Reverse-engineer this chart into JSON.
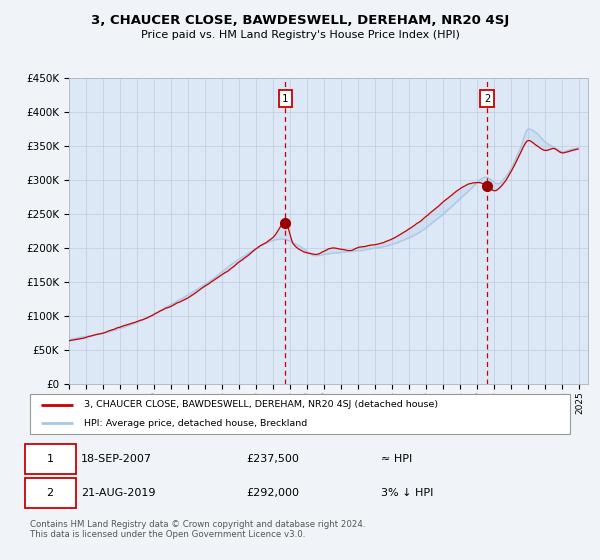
{
  "title": "3, CHAUCER CLOSE, BAWDESWELL, DEREHAM, NR20 4SJ",
  "subtitle": "Price paid vs. HM Land Registry's House Price Index (HPI)",
  "legend_line1": "3, CHAUCER CLOSE, BAWDESWELL, DEREHAM, NR20 4SJ (detached house)",
  "legend_line2": "HPI: Average price, detached house, Breckland",
  "annotation1_date": "18-SEP-2007",
  "annotation1_price": "£237,500",
  "annotation1_hpi": "≈ HPI",
  "annotation2_date": "21-AUG-2019",
  "annotation2_price": "£292,000",
  "annotation2_hpi": "3% ↓ HPI",
  "footnote": "Contains HM Land Registry data © Crown copyright and database right 2024.\nThis data is licensed under the Open Government Licence v3.0.",
  "hpi_line_color": "#a8c8e8",
  "price_line_color": "#cc0000",
  "fig_bg_color": "#f0f4f8",
  "plot_bg_color": "#dce8f5",
  "grid_color": "#c0cce0",
  "ann_vline_color": "#cc0000",
  "marker_color": "#990000",
  "ylim": [
    0,
    450000
  ],
  "yticks": [
    0,
    50000,
    100000,
    150000,
    200000,
    250000,
    300000,
    350000,
    400000,
    450000
  ],
  "ann1_x": 2007.71,
  "ann1_y": 237500,
  "ann2_x": 2019.58,
  "ann2_y": 292000,
  "xmin": 1995,
  "xmax": 2025.5
}
